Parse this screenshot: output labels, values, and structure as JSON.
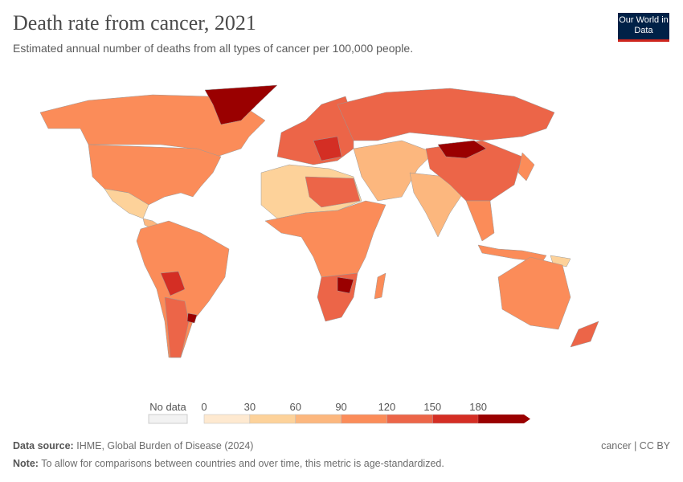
{
  "header": {
    "title": "Death rate from cancer, 2021",
    "subtitle": "Estimated annual number of deaths from all types of cancer per 100,000 people.",
    "logo_text": "Our World in Data"
  },
  "chart_data": {
    "type": "choropleth-map",
    "title": "Death rate from cancer, 2021",
    "legend": {
      "no_data_label": "No data",
      "ticks": [
        "0",
        "30",
        "60",
        "90",
        "120",
        "150",
        "180"
      ],
      "bins": [
        {
          "min": 0,
          "max": 30,
          "color": "#fee9d0"
        },
        {
          "min": 30,
          "max": 60,
          "color": "#fdd29a"
        },
        {
          "min": 60,
          "max": 90,
          "color": "#fcb77e"
        },
        {
          "min": 90,
          "max": 120,
          "color": "#fb8c59"
        },
        {
          "min": 120,
          "max": 150,
          "color": "#ec6548"
        },
        {
          "min": 150,
          "max": 180,
          "color": "#d42e24"
        },
        {
          "min": 180,
          "max": null,
          "color": "#9a0000"
        }
      ],
      "placement": "bottom-center"
    }
  },
  "footer": {
    "source_label": "Data source:",
    "source": "IHME, Global Burden of Disease (2024)",
    "license": "cancer | CC BY",
    "note_label": "Note:",
    "note": "To allow for comparisons between countries and over time, this metric is age-standardized."
  }
}
